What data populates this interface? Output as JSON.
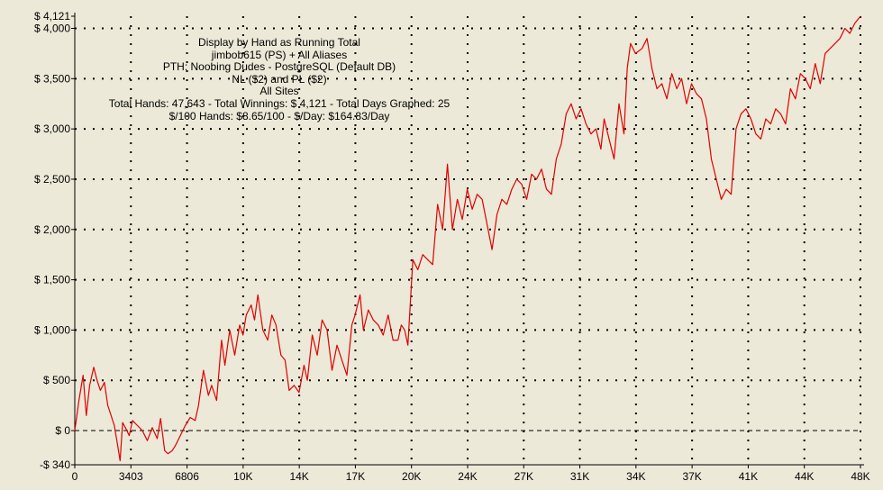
{
  "chart_data": {
    "type": "line",
    "info_lines": [
      "Display by Hand as Running Total",
      "jimbob615 (PS) + All Aliases",
      "PTH: Noobing Dudes - PostgreSQL (Default DB)",
      "NL ($2) and PL ($2)",
      "All Sites",
      "Total Hands: 47,643 - Total Winnings: $ 4,121 - Total Days Graphed: 25",
      "$/100 Hands: $8.65/100 - $/Day: $164.83/Day"
    ],
    "xlim": [
      0,
      47643
    ],
    "ylim": [
      -340,
      4121
    ],
    "x_ticks": [
      {
        "value": 0,
        "label": "0"
      },
      {
        "value": 3403,
        "label": "3403"
      },
      {
        "value": 6806,
        "label": "6806"
      },
      {
        "value": 10209,
        "label": "10K"
      },
      {
        "value": 13612,
        "label": "14K"
      },
      {
        "value": 17015,
        "label": "17K"
      },
      {
        "value": 20418,
        "label": "20K"
      },
      {
        "value": 23821,
        "label": "24K"
      },
      {
        "value": 27224,
        "label": "27K"
      },
      {
        "value": 30627,
        "label": "31K"
      },
      {
        "value": 34030,
        "label": "34K"
      },
      {
        "value": 37433,
        "label": "37K"
      },
      {
        "value": 40836,
        "label": "41K"
      },
      {
        "value": 44239,
        "label": "44K"
      },
      {
        "value": 47643,
        "label": "48K"
      }
    ],
    "y_ticks": [
      {
        "value": 4121,
        "label": "$ 4,121"
      },
      {
        "value": 4000,
        "label": "$ 4,000"
      },
      {
        "value": 3500,
        "label": "$ 3,500"
      },
      {
        "value": 3000,
        "label": "$ 3,000"
      },
      {
        "value": 2500,
        "label": "$ 2,500"
      },
      {
        "value": 2000,
        "label": "$ 2,000"
      },
      {
        "value": 1500,
        "label": "$ 1,500"
      },
      {
        "value": 1000,
        "label": "$ 1,000"
      },
      {
        "value": 500,
        "label": "$ 500"
      },
      {
        "value": 0,
        "label": "$ 0"
      },
      {
        "value": -340,
        "label": "-$ 340"
      }
    ],
    "grid": true,
    "zero_line": true,
    "series": [
      {
        "color": "#e00000",
        "x": [
          0,
          250,
          500,
          700,
          900,
          1150,
          1350,
          1550,
          1800,
          2000,
          2200,
          2400,
          2600,
          2750,
          2900,
          3100,
          3300,
          3500,
          3800,
          4100,
          4400,
          4700,
          5000,
          5200,
          5450,
          5650,
          5900,
          6100,
          6400,
          6700,
          7000,
          7300,
          7500,
          7800,
          8100,
          8300,
          8600,
          8900,
          9100,
          9400,
          9700,
          10000,
          10200,
          10400,
          10700,
          10900,
          11100,
          11400,
          11700,
          11950,
          12200,
          12500,
          12750,
          13000,
          13300,
          13600,
          13900,
          14100,
          14400,
          14700,
          15000,
          15300,
          15600,
          15900,
          16200,
          16500,
          16800,
          17000,
          17300,
          17500,
          17800,
          18100,
          18400,
          18700,
          19000,
          19300,
          19600,
          19800,
          20000,
          20200,
          20500,
          20800,
          21100,
          21400,
          21700,
          22000,
          22300,
          22600,
          22900,
          23200,
          23500,
          23800,
          24100,
          24400,
          24700,
          25000,
          25300,
          25600,
          25900,
          26200,
          26500,
          26800,
          27100,
          27400,
          27700,
          28000,
          28300,
          28600,
          28900,
          29200,
          29500,
          29800,
          30100,
          30400,
          30700,
          31000,
          31300,
          31600,
          31900,
          32100,
          32400,
          32700,
          33000,
          33300,
          33500,
          33700,
          34000,
          34400,
          34700,
          35000,
          35300,
          35600,
          35900,
          36200,
          36500,
          36800,
          37100,
          37400,
          37700,
          38000,
          38300,
          38600,
          38900,
          39200,
          39500,
          39800,
          40100,
          40400,
          40700,
          41000,
          41300,
          41600,
          41900,
          42200,
          42500,
          42800,
          43100,
          43400,
          43700,
          44000,
          44300,
          44600,
          44900,
          45200,
          45500,
          45800,
          46100,
          46400,
          46700,
          47000,
          47300,
          47643
        ],
        "y": [
          0,
          300,
          550,
          150,
          450,
          630,
          500,
          400,
          480,
          250,
          150,
          50,
          -150,
          -300,
          80,
          20,
          -50,
          100,
          50,
          0,
          -100,
          30,
          -80,
          120,
          -200,
          -230,
          -200,
          -150,
          -50,
          50,
          130,
          100,
          250,
          600,
          350,
          450,
          300,
          900,
          650,
          1000,
          750,
          1050,
          950,
          1150,
          1250,
          1100,
          1350,
          1000,
          900,
          1150,
          1050,
          750,
          700,
          400,
          450,
          380,
          650,
          500,
          950,
          750,
          1100,
          1000,
          600,
          850,
          700,
          550,
          1050,
          1150,
          1350,
          1000,
          1200,
          1100,
          1050,
          950,
          1150,
          900,
          900,
          1050,
          1000,
          850,
          1700,
          1600,
          1750,
          1700,
          1650,
          2250,
          2000,
          2650,
          2000,
          2300,
          2100,
          2400,
          2200,
          2350,
          2300,
          2050,
          1800,
          2150,
          2300,
          2250,
          2400,
          2500,
          2450,
          2300,
          2550,
          2500,
          2600,
          2400,
          2350,
          2700,
          2850,
          3150,
          3250,
          3100,
          3200,
          3050,
          2950,
          3000,
          2800,
          3100,
          2900,
          2700,
          3250,
          2950,
          3600,
          3850,
          3750,
          3800,
          3900,
          3600,
          3400,
          3450,
          3300,
          3550,
          3400,
          3500,
          3250,
          3450,
          3350,
          3300,
          3100,
          2700,
          2500,
          2300,
          2400,
          2350,
          3000,
          3150,
          3200,
          3100,
          2950,
          2900,
          3100,
          3050,
          3200,
          3150,
          3050,
          3400,
          3300,
          3550,
          3500,
          3400,
          3650,
          3450,
          3750,
          3800,
          3850,
          3900,
          4000,
          3950,
          4050,
          4121
        ]
      }
    ]
  }
}
